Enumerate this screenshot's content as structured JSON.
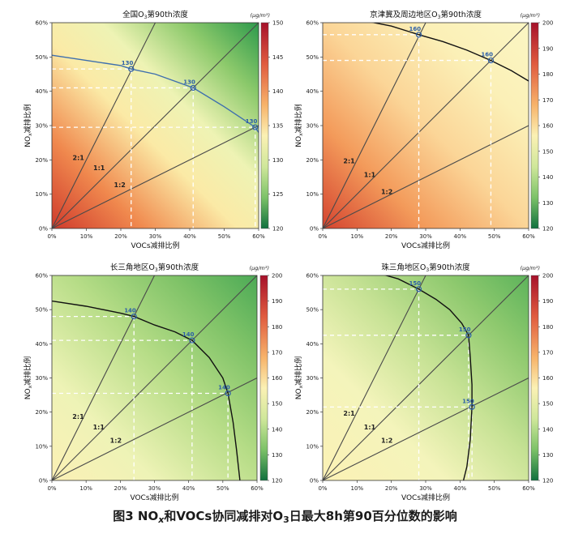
{
  "figure": {
    "caption_parts": [
      "图3  NO",
      "x",
      "和VOCs协同减排对O",
      "3",
      "日最大8h第90百分位数的影响"
    ]
  },
  "axis_common": {
    "xlabel": "VOCs减排比例",
    "ylabel_parts": [
      "NO",
      "x",
      "减排比例"
    ],
    "ticks": [
      0,
      10,
      20,
      30,
      40,
      50,
      60
    ],
    "tick_suffix": "%",
    "unit": "(μg/m³)",
    "ratios": [
      {
        "label": "2:1",
        "slope": 2
      },
      {
        "label": "1:1",
        "slope": 1
      },
      {
        "label": "1:2",
        "slope": 0.5
      }
    ]
  },
  "chart_data": [
    {
      "type": "heatmap",
      "title_parts": [
        "全国O",
        "3",
        "第90th浓度"
      ],
      "xlabel": "VOCs减排比例",
      "ylabel": "NOx减排比例",
      "xlim": [
        0,
        60
      ],
      "ylim": [
        0,
        60
      ],
      "colorbar": {
        "ticks": [
          120,
          125,
          130,
          135,
          140,
          145,
          150
        ],
        "min": 120,
        "max": 150
      },
      "contour": {
        "level": 130,
        "points": [
          [
            0,
            50.5
          ],
          [
            10,
            49
          ],
          [
            20,
            47.5
          ],
          [
            23,
            46.5
          ],
          [
            30,
            45
          ],
          [
            41,
            41
          ],
          [
            50,
            35.5
          ],
          [
            59,
            29.5
          ],
          [
            60,
            28
          ]
        ]
      },
      "markers": [
        {
          "x": 23,
          "y": 46.5,
          "label": "130"
        },
        {
          "x": 41,
          "y": 41,
          "label": "130"
        },
        {
          "x": 59,
          "y": 29.5,
          "label": "130"
        }
      ],
      "ratio_label_pos": [
        [
          6,
          20
        ],
        [
          12,
          17
        ],
        [
          18,
          12
        ]
      ]
    },
    {
      "type": "heatmap",
      "title_parts": [
        "京津冀及周边地区O",
        "3",
        "第90th浓度"
      ],
      "xlabel": "VOCs减排比例",
      "ylabel": "NOx减排比例",
      "xlim": [
        0,
        60
      ],
      "ylim": [
        0,
        60
      ],
      "colorbar": {
        "ticks": [
          120,
          130,
          140,
          150,
          160,
          170,
          180,
          190,
          200
        ],
        "min": 120,
        "max": 200
      },
      "contour": {
        "level": 160,
        "points": [
          [
            10,
            61
          ],
          [
            20,
            59
          ],
          [
            28,
            56.5
          ],
          [
            35,
            54.5
          ],
          [
            42,
            52
          ],
          [
            49,
            49
          ],
          [
            55,
            46
          ],
          [
            60,
            43
          ]
        ]
      },
      "markers": [
        {
          "x": 28,
          "y": 56.5,
          "label": "160"
        },
        {
          "x": 49,
          "y": 49,
          "label": "160"
        }
      ],
      "ratio_label_pos": [
        [
          6,
          19
        ],
        [
          12,
          15
        ],
        [
          17,
          10
        ]
      ]
    },
    {
      "type": "heatmap",
      "title_parts": [
        "长三角地区O",
        "3",
        "第90th浓度"
      ],
      "xlabel": "VOCs减排比例",
      "ylabel": "NOx减排比例",
      "xlim": [
        0,
        60
      ],
      "ylim": [
        0,
        60
      ],
      "colorbar": {
        "ticks": [
          120,
          130,
          140,
          150,
          160,
          170,
          180,
          190,
          200
        ],
        "min": 120,
        "max": 200
      },
      "contour": {
        "level": 140,
        "points": [
          [
            0,
            52.5
          ],
          [
            10,
            51
          ],
          [
            20,
            49
          ],
          [
            24,
            48
          ],
          [
            30,
            45.5
          ],
          [
            36,
            43.5
          ],
          [
            41,
            41
          ],
          [
            46,
            36
          ],
          [
            50,
            30
          ],
          [
            51.5,
            25.5
          ],
          [
            53,
            17
          ],
          [
            54,
            9
          ],
          [
            55,
            0
          ]
        ]
      },
      "markers": [
        {
          "x": 24,
          "y": 48,
          "label": "140"
        },
        {
          "x": 41,
          "y": 41,
          "label": "140"
        },
        {
          "x": 51.5,
          "y": 25.5,
          "label": "140"
        }
      ],
      "ratio_label_pos": [
        [
          6,
          18
        ],
        [
          12,
          15
        ],
        [
          17,
          11
        ]
      ]
    },
    {
      "type": "heatmap",
      "title_parts": [
        "珠三角地区O",
        "3",
        "第90th浓度"
      ],
      "xlabel": "VOCs减排比例",
      "ylabel": "NOx减排比例",
      "xlim": [
        0,
        60
      ],
      "ylim": [
        0,
        60
      ],
      "colorbar": {
        "ticks": [
          120,
          130,
          140,
          150,
          160,
          170,
          180,
          190,
          200
        ],
        "min": 120,
        "max": 200
      },
      "contour": {
        "level": 150,
        "points": [
          [
            15,
            61
          ],
          [
            22,
            59
          ],
          [
            28,
            56
          ],
          [
            33,
            53
          ],
          [
            37,
            50
          ],
          [
            40.5,
            46
          ],
          [
            42.5,
            42.5
          ],
          [
            43,
            36
          ],
          [
            43.5,
            28
          ],
          [
            43.5,
            21.5
          ],
          [
            43,
            12
          ],
          [
            42,
            4
          ],
          [
            41,
            0
          ]
        ]
      },
      "markers": [
        {
          "x": 28,
          "y": 56,
          "label": "150"
        },
        {
          "x": 42.5,
          "y": 42.5,
          "label": "150"
        },
        {
          "x": 43.5,
          "y": 21.5,
          "label": "150"
        }
      ],
      "ratio_label_pos": [
        [
          6,
          19
        ],
        [
          12,
          15
        ],
        [
          17,
          11
        ]
      ]
    }
  ],
  "colors": {
    "red": "#c62a2a",
    "orange": "#f08a4b",
    "yellow": "#fbf4b2",
    "lightgreen": "#b6dc7e",
    "green": "#2f9a4a",
    "contour_blue": "#3e6fae",
    "marker_blue": "#2b5ea8"
  }
}
